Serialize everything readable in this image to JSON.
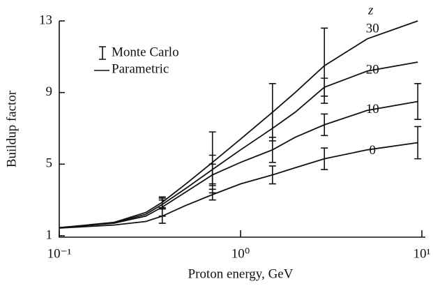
{
  "chart_data": {
    "type": "line",
    "xlabel": "Proton energy, GeV",
    "ylabel": "Buildup factor",
    "legend_title": "z",
    "legend": {
      "error_bars": "Monte Carlo",
      "lines": "Parametric"
    },
    "xscale": "log",
    "x": [
      0.1,
      0.2,
      0.3,
      0.37,
      0.5,
      0.7,
      1,
      1.5,
      2,
      2.9,
      5,
      9.5
    ],
    "series": [
      {
        "name": "30",
        "color": "#111111",
        "values": [
          1.45,
          1.75,
          2.3,
          2.87,
          3.9,
          5.1,
          6.4,
          7.9,
          9.0,
          10.5,
          12.0,
          13.0
        ],
        "errors": [
          null,
          null,
          null,
          0.3,
          null,
          1.7,
          null,
          1.6,
          null,
          2.1,
          null,
          null
        ]
      },
      {
        "name": "20",
        "color": "#111111",
        "values": [
          1.45,
          1.72,
          2.2,
          2.75,
          3.65,
          4.7,
          5.8,
          7.0,
          7.9,
          9.3,
          10.2,
          10.7
        ],
        "errors": [
          null,
          null,
          null,
          0.25,
          null,
          0.8,
          null,
          null,
          null,
          0.5,
          null,
          null
        ]
      },
      {
        "name": "10",
        "color": "#111111",
        "values": [
          1.45,
          1.7,
          2.1,
          2.6,
          3.45,
          4.4,
          5.1,
          5.8,
          6.5,
          7.2,
          8.0,
          8.5
        ],
        "errors": [
          null,
          null,
          null,
          0.5,
          null,
          0.6,
          null,
          0.7,
          null,
          0.6,
          null,
          1.0
        ]
      },
      {
        "name": "0",
        "color": "#111111",
        "values": [
          1.43,
          1.6,
          1.8,
          2.1,
          2.7,
          3.3,
          3.9,
          4.4,
          4.8,
          5.3,
          5.8,
          6.2
        ],
        "errors": [
          null,
          null,
          null,
          0.4,
          null,
          0.3,
          null,
          0.5,
          null,
          0.6,
          null,
          0.9
        ]
      }
    ],
    "xlim": [
      0.1,
      10
    ],
    "ylim": [
      1,
      13
    ],
    "xticks": [
      {
        "value": 0.1,
        "label": "10⁻¹"
      },
      {
        "value": 1,
        "label": "10⁰"
      },
      {
        "value": 10,
        "label": "10¹"
      }
    ],
    "yticks": [
      1,
      5,
      9,
      13
    ]
  }
}
